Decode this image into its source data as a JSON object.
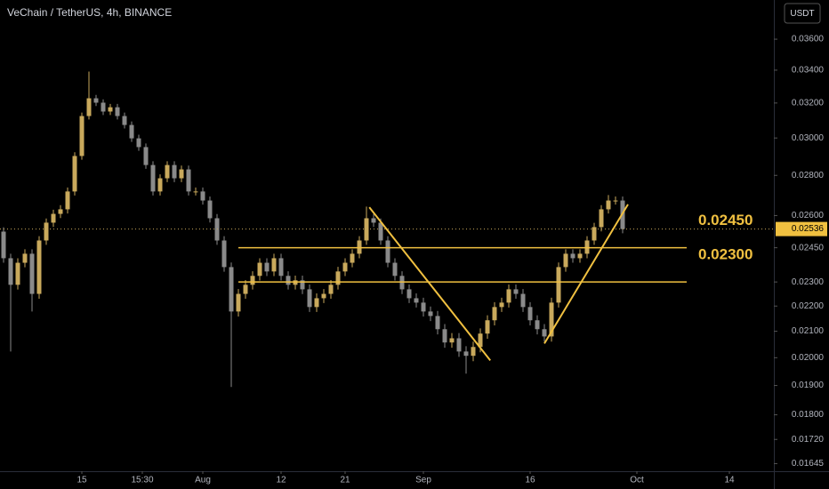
{
  "chart_data": {
    "type": "candlestick",
    "title": "VeChain / TetherUS, 4h, BINANCE",
    "currency_button": "USDT",
    "log_scale": true,
    "up_color": "#c9a95c",
    "down_color": "#8a8a8a",
    "level_color": "#f0c040",
    "x": [
      -28,
      -27,
      -26,
      -25,
      -24,
      -23,
      -22,
      -21,
      -20,
      -19,
      -18,
      -17,
      -16,
      -15,
      -14,
      -13,
      -12,
      -11,
      -10,
      -9,
      -8,
      -7,
      -6,
      -5,
      -4,
      -3,
      -2,
      -1,
      0,
      1,
      2,
      3,
      4,
      5,
      6,
      7,
      8,
      9,
      10,
      11,
      12,
      13,
      14,
      15,
      16,
      17,
      18,
      19,
      20,
      21,
      22,
      23,
      24,
      25,
      26,
      27,
      28,
      29,
      30,
      31,
      32,
      33,
      34,
      35,
      36,
      37,
      38,
      39,
      40,
      41,
      42,
      43,
      44,
      45,
      46,
      47,
      48,
      49,
      50,
      51,
      52,
      53,
      54,
      55,
      56,
      57,
      58,
      59
    ],
    "open": [
      0.02524,
      0.02403,
      0.02288,
      0.02383,
      0.02423,
      0.0225,
      0.02483,
      0.02566,
      0.02608,
      0.0263,
      0.02718,
      0.02902,
      0.03124,
      0.03228,
      0.03202,
      0.0315,
      0.03175,
      0.03124,
      0.03073,
      0.02998,
      0.0295,
      0.02854,
      0.02718,
      0.02785,
      0.02854,
      0.02785,
      0.02831,
      0.02718,
      0.02718,
      0.02673,
      0.02587,
      0.02483,
      0.02364,
      0.02178,
      0.0225,
      0.02288,
      0.02326,
      0.02383,
      0.02345,
      0.02403,
      0.02326,
      0.02288,
      0.02307,
      0.02269,
      0.02196,
      0.02232,
      0.0225,
      0.02288,
      0.02345,
      0.02383,
      0.02423,
      0.02483,
      0.02587,
      0.02566,
      0.02483,
      0.02383,
      0.02326,
      0.02269,
      0.02232,
      0.02214,
      0.02178,
      0.0216,
      0.02108,
      0.02057,
      0.02073,
      0.02023,
      0.02007,
      0.0204,
      0.02091,
      0.02143,
      0.02196,
      0.02214,
      0.02269,
      0.0225,
      0.02196,
      0.02143,
      0.02108,
      0.0208,
      0.02214,
      0.02364,
      0.02423,
      0.02403,
      0.02423,
      0.02483,
      0.02545,
      0.0263,
      0.02673,
      0.02673
    ],
    "high": [
      0.02544,
      0.02423,
      0.02403,
      0.02443,
      0.02443,
      0.02503,
      0.02586,
      0.02628,
      0.0265,
      0.02738,
      0.02922,
      0.03144,
      0.03391,
      0.03248,
      0.03222,
      0.03195,
      0.03195,
      0.03144,
      0.03093,
      0.03018,
      0.0297,
      0.02874,
      0.02805,
      0.02874,
      0.02874,
      0.02851,
      0.02851,
      0.02738,
      0.02738,
      0.02693,
      0.02607,
      0.02503,
      0.02384,
      0.0227,
      0.02308,
      0.02346,
      0.02403,
      0.02403,
      0.02423,
      0.02423,
      0.02346,
      0.02327,
      0.02327,
      0.02289,
      0.02252,
      0.0227,
      0.02308,
      0.02365,
      0.02403,
      0.02443,
      0.02503,
      0.02643,
      0.02607,
      0.02586,
      0.02503,
      0.02403,
      0.02346,
      0.02289,
      0.02252,
      0.02234,
      0.02198,
      0.0218,
      0.02128,
      0.02093,
      0.02093,
      0.02043,
      0.0206,
      0.02111,
      0.02163,
      0.02216,
      0.02234,
      0.02289,
      0.02289,
      0.0227,
      0.02216,
      0.02163,
      0.02128,
      0.02234,
      0.02384,
      0.02443,
      0.02443,
      0.02443,
      0.02503,
      0.02565,
      0.0265,
      0.027,
      0.02693,
      0.02693
    ],
    "low": [
      0.02383,
      0.02023,
      0.02268,
      0.02363,
      0.02178,
      0.0223,
      0.02463,
      0.02546,
      0.02588,
      0.0261,
      0.02698,
      0.02882,
      0.03104,
      0.03182,
      0.0313,
      0.0313,
      0.03104,
      0.03053,
      0.02978,
      0.0293,
      0.02834,
      0.02698,
      0.02698,
      0.02765,
      0.02765,
      0.02765,
      0.02698,
      0.02698,
      0.02653,
      0.02567,
      0.02463,
      0.02344,
      0.01895,
      0.02158,
      0.0223,
      0.02268,
      0.02306,
      0.02325,
      0.02325,
      0.02306,
      0.02268,
      0.02268,
      0.02249,
      0.02176,
      0.02176,
      0.02212,
      0.0223,
      0.02268,
      0.02325,
      0.02363,
      0.02403,
      0.02463,
      0.02546,
      0.02463,
      0.02363,
      0.02306,
      0.02249,
      0.02212,
      0.02194,
      0.02158,
      0.0214,
      0.02088,
      0.02037,
      0.02037,
      0.02003,
      0.01942,
      0.01987,
      0.0202,
      0.02071,
      0.02123,
      0.02176,
      0.02194,
      0.0223,
      0.02176,
      0.02123,
      0.02088,
      0.0206,
      0.0206,
      0.02194,
      0.02344,
      0.02383,
      0.02383,
      0.02403,
      0.02463,
      0.02525,
      0.0261,
      0.02653,
      0.02516
    ],
    "close": [
      0.02403,
      0.02288,
      0.02383,
      0.02423,
      0.0225,
      0.02483,
      0.02566,
      0.02608,
      0.0263,
      0.02718,
      0.02902,
      0.03124,
      0.03228,
      0.03202,
      0.0315,
      0.03175,
      0.03124,
      0.03073,
      0.02998,
      0.0295,
      0.02854,
      0.02718,
      0.02785,
      0.02854,
      0.02785,
      0.02831,
      0.02718,
      0.02718,
      0.02673,
      0.02587,
      0.02483,
      0.02364,
      0.02178,
      0.0225,
      0.02288,
      0.02326,
      0.02383,
      0.02345,
      0.02403,
      0.02326,
      0.02288,
      0.02307,
      0.02269,
      0.02196,
      0.02232,
      0.0225,
      0.02288,
      0.02345,
      0.02383,
      0.02423,
      0.02483,
      0.02587,
      0.02566,
      0.02483,
      0.02383,
      0.02326,
      0.02269,
      0.02232,
      0.02214,
      0.02178,
      0.0216,
      0.02108,
      0.02057,
      0.02073,
      0.02023,
      0.02007,
      0.0204,
      0.02091,
      0.02143,
      0.02196,
      0.02214,
      0.02269,
      0.0225,
      0.02196,
      0.02143,
      0.02108,
      0.0208,
      0.02214,
      0.02364,
      0.02423,
      0.02403,
      0.02423,
      0.02483,
      0.02545,
      0.0263,
      0.02673,
      0.02673,
      0.02536
    ],
    "last_price": 0.02536,
    "levels": [
      {
        "value": 0.0245,
        "label": "0.02450",
        "x": [
          5,
          68
        ]
      },
      {
        "value": 0.023,
        "label": "0.02300",
        "x": [
          5,
          68
        ]
      }
    ],
    "trendlines": [
      {
        "x": [
          23.4,
          40.4
        ],
        "y": [
          0.0264,
          0.0199
        ]
      },
      {
        "x": [
          48,
          59.75
        ],
        "y": [
          0.02053,
          0.02654
        ]
      }
    ],
    "xlim": [
      -28.5,
      80.25
    ],
    "ylim": [
      0.01622,
      0.0387
    ],
    "xticks": [
      {
        "value": -17,
        "label": "15"
      },
      {
        "value": -8.5,
        "label": "15:30"
      },
      {
        "value": 0,
        "label": "Aug"
      },
      {
        "value": 11,
        "label": "12"
      },
      {
        "value": 20,
        "label": "21"
      },
      {
        "value": 31,
        "label": "Sep"
      },
      {
        "value": 46,
        "label": "16"
      },
      {
        "value": 61,
        "label": "Oct"
      },
      {
        "value": 74,
        "label": "14"
      }
    ],
    "yticks": [
      {
        "value": 0.036,
        "label": "0.03600"
      },
      {
        "value": 0.034,
        "label": "0.03400"
      },
      {
        "value": 0.032,
        "label": "0.03200"
      },
      {
        "value": 0.03,
        "label": "0.03000"
      },
      {
        "value": 0.028,
        "label": "0.02800"
      },
      {
        "value": 0.026,
        "label": "0.02600"
      },
      {
        "value": 0.0245,
        "label": "0.02450"
      },
      {
        "value": 0.023,
        "label": "0.02300"
      },
      {
        "value": 0.022,
        "label": "0.02200"
      },
      {
        "value": 0.021,
        "label": "0.02100"
      },
      {
        "value": 0.02,
        "label": "0.02000"
      },
      {
        "value": 0.019,
        "label": "0.01900"
      },
      {
        "value": 0.018,
        "label": "0.01800"
      },
      {
        "value": 0.0172,
        "label": "0.01720"
      },
      {
        "value": 0.01645,
        "label": "0.01645"
      }
    ]
  }
}
